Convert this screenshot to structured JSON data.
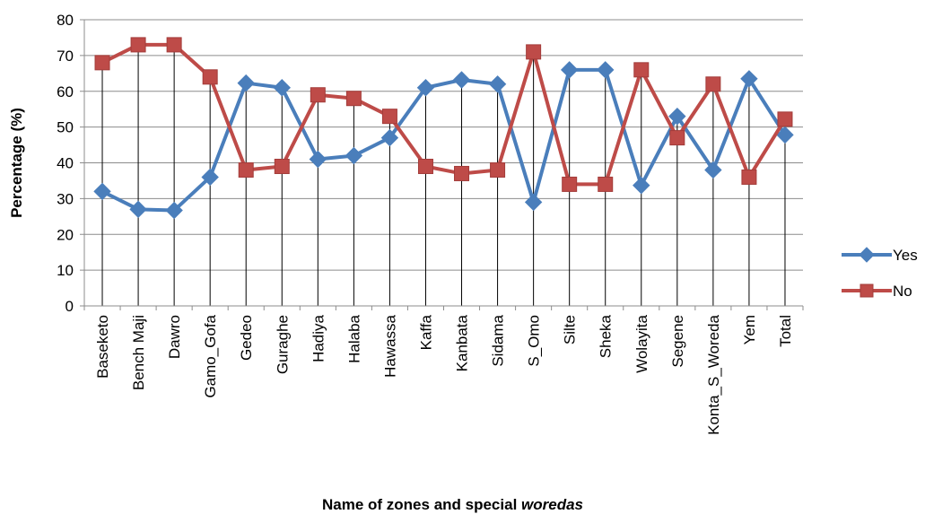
{
  "chart_data": {
    "type": "line",
    "categories": [
      "Baseketo",
      "Bench Maji",
      "Dawro",
      "Gamo_Gofa",
      "Gedeo",
      "Guraghe",
      "Hadiya",
      "Halaba",
      "Hawassa",
      "Kaffa",
      "Kanbata",
      "Sidama",
      "S_Omo",
      "Silte",
      "Sheka",
      "Wolayita",
      "Segene",
      "Konta_S_Woreda",
      "Yem",
      "Total"
    ],
    "series": [
      {
        "name": "Yes",
        "color": "#4a7ebb",
        "marker": "diamond",
        "values": [
          32,
          27,
          26.7,
          36,
          62.3,
          61,
          41,
          42,
          47,
          61,
          63.2,
          62,
          29,
          66,
          66,
          33.7,
          53,
          38,
          63.5,
          47.8
        ]
      },
      {
        "name": "No",
        "color": "#be4b48",
        "marker": "square",
        "values": [
          68,
          73,
          73,
          64,
          38,
          39,
          59,
          58,
          53,
          39,
          37,
          38,
          71,
          34,
          34,
          66,
          47,
          62,
          36,
          52.2
        ]
      }
    ],
    "xlabel_main": "Name of zones and special ",
    "xlabel_italic": "woredas",
    "ylabel": "Percentage (%)",
    "ylim": [
      0,
      80
    ],
    "yticks": [
      0,
      10,
      20,
      30,
      40,
      50,
      60,
      70,
      80
    ],
    "grid": "horizontal",
    "drop_lines": true,
    "legend_position": "right"
  }
}
